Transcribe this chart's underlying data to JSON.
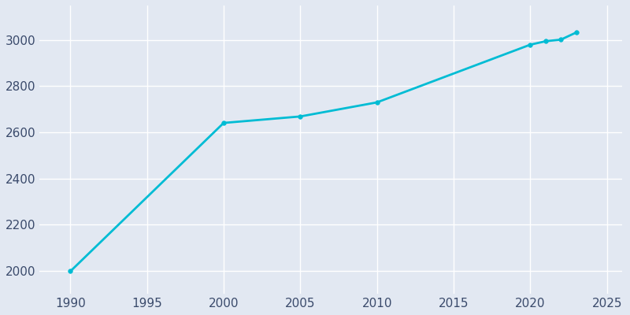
{
  "years": [
    1990,
    2000,
    2005,
    2010,
    2020,
    2021,
    2022,
    2023
  ],
  "population": [
    1998,
    2641,
    2669,
    2730,
    2980,
    2995,
    3002,
    3033
  ],
  "line_color": "#00bcd4",
  "marker_color": "#00bcd4",
  "background_color": "#e2e8f2",
  "grid_color": "#ffffff",
  "tick_label_color": "#3a4a6b",
  "xlim": [
    1988,
    2026
  ],
  "ylim": [
    1900,
    3150
  ],
  "xticks": [
    1990,
    1995,
    2000,
    2005,
    2010,
    2015,
    2020,
    2025
  ],
  "yticks": [
    2000,
    2200,
    2400,
    2600,
    2800,
    3000
  ],
  "line_width": 2.0,
  "marker_size": 4,
  "marker_style": "o",
  "figsize": [
    8.0,
    4.0
  ],
  "dpi": 100
}
